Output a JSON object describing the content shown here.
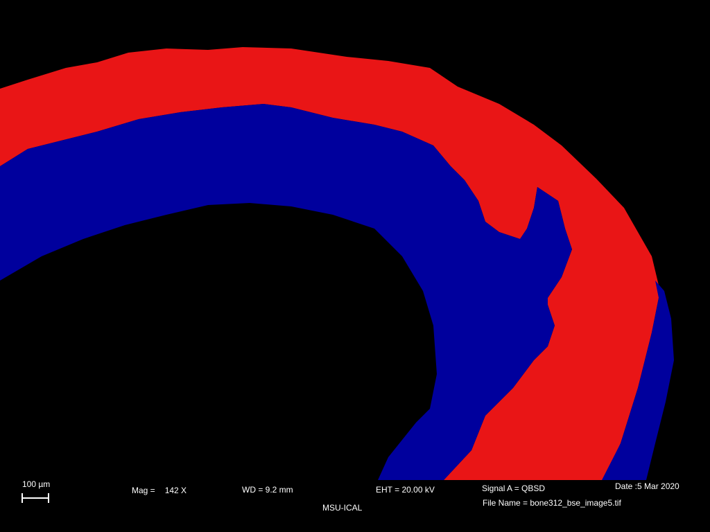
{
  "colors": {
    "background": "#000000",
    "outer_layer": "#e91516",
    "inner_layer": "#00009d",
    "text": "#ffffff"
  },
  "info_bar": {
    "scale_bar_label": "100 µm",
    "mag_label": "Mag =",
    "mag_value": "142 X",
    "wd": "WD =  9.2 mm",
    "eht": "EHT = 20.00 kV",
    "signal": "Signal A = QBSD",
    "date": "Date :5 Mar 2020",
    "file_name": "File Name = bone312_bse_image5.tif",
    "institution": "MSU-ICAL"
  }
}
